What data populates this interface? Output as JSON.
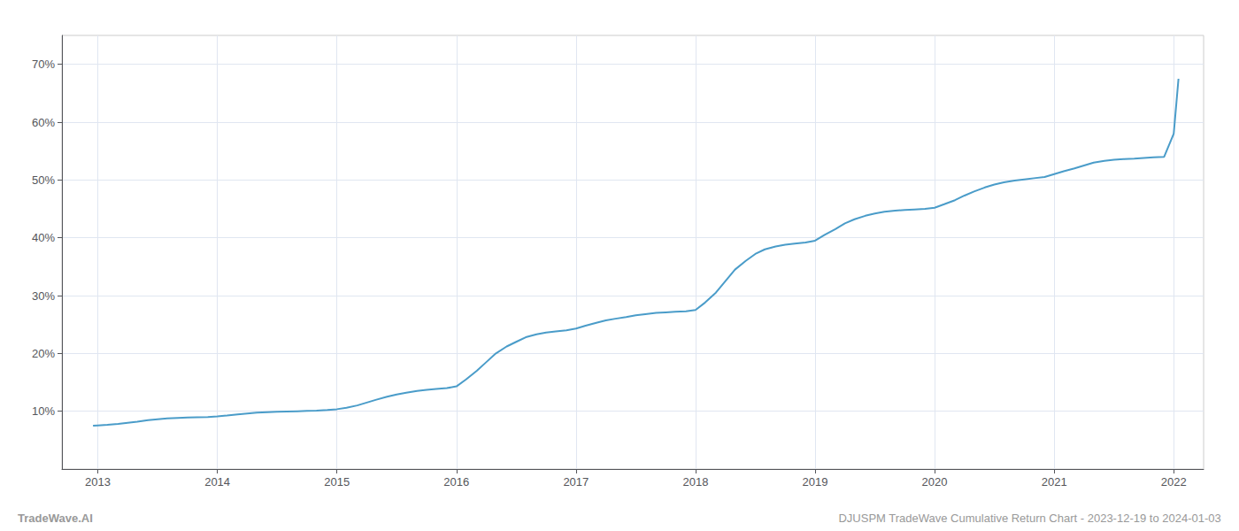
{
  "chart_data": {
    "type": "line",
    "annotations": [
      "TradeWave.AI",
      "DJUSPM TradeWave Cumulative Return Chart - 2023-12-19 to 2024-01-03"
    ],
    "color": "#4a9cc9",
    "x": [
      2012.96,
      2013.0,
      2013.08,
      2013.17,
      2013.25,
      2013.33,
      2013.42,
      2013.5,
      2013.58,
      2013.67,
      2013.75,
      2013.83,
      2013.92,
      2014.0,
      2014.08,
      2014.17,
      2014.25,
      2014.33,
      2014.42,
      2014.5,
      2014.58,
      2014.67,
      2014.75,
      2014.83,
      2014.92,
      2015.0,
      2015.08,
      2015.17,
      2015.25,
      2015.33,
      2015.42,
      2015.5,
      2015.58,
      2015.67,
      2015.75,
      2015.83,
      2015.92,
      2016.0,
      2016.08,
      2016.17,
      2016.25,
      2016.33,
      2016.42,
      2016.5,
      2016.58,
      2016.67,
      2016.75,
      2016.83,
      2016.92,
      2017.0,
      2017.08,
      2017.17,
      2017.25,
      2017.33,
      2017.42,
      2017.5,
      2017.58,
      2017.67,
      2017.75,
      2017.83,
      2017.92,
      2018.0,
      2018.08,
      2018.17,
      2018.25,
      2018.33,
      2018.42,
      2018.5,
      2018.58,
      2018.67,
      2018.75,
      2018.83,
      2018.92,
      2019.0,
      2019.08,
      2019.17,
      2019.25,
      2019.33,
      2019.42,
      2019.5,
      2019.58,
      2019.67,
      2019.75,
      2019.83,
      2019.92,
      2020.0,
      2020.08,
      2020.17,
      2020.25,
      2020.33,
      2020.42,
      2020.5,
      2020.58,
      2020.67,
      2020.75,
      2020.83,
      2020.92,
      2021.0,
      2021.08,
      2021.17,
      2021.25,
      2021.33,
      2021.42,
      2021.5,
      2021.58,
      2021.67,
      2021.75,
      2021.83,
      2021.92,
      2022.0,
      2022.04
    ],
    "values": [
      7.5,
      7.55,
      7.65,
      7.8,
      8.0,
      8.2,
      8.45,
      8.6,
      8.75,
      8.85,
      8.9,
      8.95,
      9.0,
      9.1,
      9.25,
      9.45,
      9.6,
      9.75,
      9.85,
      9.9,
      9.95,
      10.0,
      10.05,
      10.1,
      10.2,
      10.35,
      10.6,
      11.0,
      11.5,
      12.0,
      12.5,
      12.9,
      13.2,
      13.5,
      13.7,
      13.85,
      14.0,
      14.3,
      15.5,
      17.0,
      18.5,
      20.0,
      21.2,
      22.0,
      22.8,
      23.3,
      23.6,
      23.8,
      24.0,
      24.3,
      24.8,
      25.3,
      25.7,
      26.0,
      26.3,
      26.6,
      26.8,
      27.0,
      27.1,
      27.2,
      27.3,
      27.5,
      28.8,
      30.5,
      32.5,
      34.5,
      36.0,
      37.2,
      38.0,
      38.5,
      38.8,
      39.0,
      39.2,
      39.5,
      40.5,
      41.5,
      42.5,
      43.2,
      43.8,
      44.2,
      44.5,
      44.7,
      44.8,
      44.9,
      45.0,
      45.2,
      45.8,
      46.5,
      47.3,
      48.0,
      48.7,
      49.2,
      49.6,
      49.9,
      50.1,
      50.3,
      50.5,
      51.0,
      51.5,
      52.0,
      52.5,
      53.0,
      53.3,
      53.5,
      53.6,
      53.7,
      53.8,
      53.9,
      54.0,
      58.0,
      67.5
    ],
    "xlim": [
      2012.7,
      2022.25
    ],
    "xticks": [
      2013,
      2014,
      2015,
      2016,
      2017,
      2018,
      2019,
      2020,
      2021,
      2022
    ],
    "ylim": [
      0,
      75
    ],
    "yticks": [
      {
        "value": 10,
        "label": "10%"
      },
      {
        "value": 20,
        "label": "20%"
      },
      {
        "value": 30,
        "label": "30%"
      },
      {
        "value": 40,
        "label": "40%"
      },
      {
        "value": 50,
        "label": "50%"
      },
      {
        "value": 60,
        "label": "60%"
      },
      {
        "value": 70,
        "label": "70%"
      }
    ],
    "grid": true
  }
}
